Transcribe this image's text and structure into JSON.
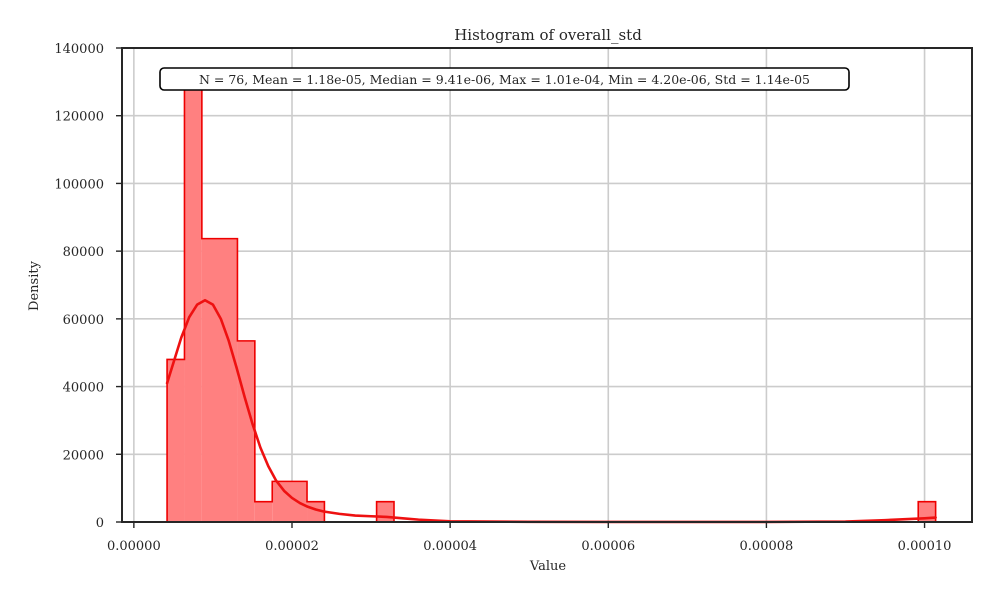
{
  "chart_data": {
    "type": "histogram",
    "title": "Histogram of overall_std",
    "xlabel": "Value",
    "ylabel": "Density",
    "xlim": [
      -1.5e-06,
      0.000106
    ],
    "ylim": [
      0,
      140000
    ],
    "x_ticks": [
      0,
      2e-05,
      4e-05,
      6e-05,
      8e-05,
      0.0001
    ],
    "x_tick_labels": [
      "0.00000",
      "0.00002",
      "0.00004",
      "0.00006",
      "0.00008",
      "0.00010"
    ],
    "y_ticks": [
      0,
      20000,
      40000,
      60000,
      80000,
      100000,
      120000,
      140000
    ],
    "y_tick_labels": [
      "0",
      "20000",
      "40000",
      "60000",
      "80000",
      "100000",
      "120000",
      "140000"
    ],
    "grid": true,
    "bins": [
      {
        "x0": 4.2e-06,
        "x1": 6.4e-06,
        "density": 48000
      },
      {
        "x0": 6.4e-06,
        "x1": 8.6e-06,
        "density": 132000
      },
      {
        "x0": 8.6e-06,
        "x1": 1.31e-05,
        "density": 83700
      },
      {
        "x0": 1.31e-05,
        "x1": 1.53e-05,
        "density": 53500
      },
      {
        "x0": 1.53e-05,
        "x1": 1.75e-05,
        "density": 6000
      },
      {
        "x0": 1.75e-05,
        "x1": 2.19e-05,
        "density": 12000
      },
      {
        "x0": 2.19e-05,
        "x1": 2.41e-05,
        "density": 6000
      },
      {
        "x0": 3.07e-05,
        "x1": 3.29e-05,
        "density": 6000
      },
      {
        "x0": 9.92e-05,
        "x1": 0.0001014,
        "density": 6000
      }
    ],
    "kde": {
      "x": [
        4.2e-06,
        5e-06,
        6e-06,
        7e-06,
        8e-06,
        9e-06,
        1e-05,
        1.1e-05,
        1.2e-05,
        1.3e-05,
        1.4e-05,
        1.5e-05,
        1.6e-05,
        1.7e-05,
        1.8e-05,
        1.9e-05,
        2e-05,
        2.1e-05,
        2.2e-05,
        2.3e-05,
        2.4e-05,
        2.6e-05,
        2.8e-05,
        3e-05,
        3.2e-05,
        3.4e-05,
        3.6e-05,
        4e-05,
        5e-05,
        6e-05,
        7e-05,
        8e-05,
        9e-05,
        9.5e-05,
        0.0001,
        0.0001014
      ],
      "y": [
        41000,
        47000,
        54500,
        60500,
        64200,
        65500,
        64200,
        60000,
        53500,
        45500,
        37000,
        29000,
        22000,
        16500,
        12200,
        9200,
        7100,
        5600,
        4500,
        3700,
        3100,
        2400,
        1900,
        1700,
        1500,
        1100,
        700,
        200,
        50,
        20,
        20,
        20,
        150,
        550,
        1100,
        1300
      ]
    },
    "colors": {
      "bar_fill": "#ff8080",
      "bar_edge": "#ee0000",
      "kde_line": "#ee1111",
      "grid": "#cccccc",
      "axes": "#262626"
    }
  },
  "stats_box": {
    "text": "N = 76, Mean = 1.18e-05, Median = 9.41e-06, Max = 1.01e-04, Min = 4.20e-06, Std = 1.14e-05"
  }
}
